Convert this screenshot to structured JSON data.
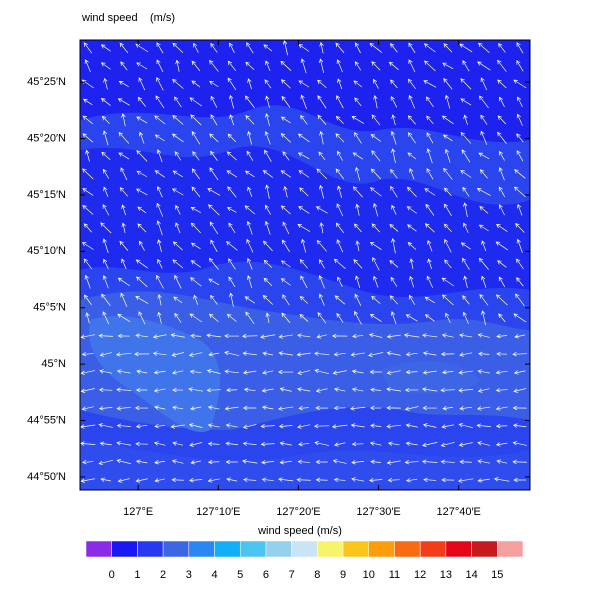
{
  "chart_data": {
    "type": "map",
    "title": "wind speed",
    "units": "(m/s)",
    "xlim": [
      126.879,
      127.815
    ],
    "ylim": [
      44.814,
      45.479
    ],
    "xticks": [
      {
        "value": 127,
        "label": "127°E"
      },
      {
        "value": 127.1667,
        "label": "127°10′E"
      },
      {
        "value": 127.3333,
        "label": "127°20′E"
      },
      {
        "value": 127.5,
        "label": "127°30′E"
      },
      {
        "value": 127.6667,
        "label": "127°40′E"
      }
    ],
    "yticks": [
      {
        "value": 44.8333,
        "label": "44°50′N"
      },
      {
        "value": 44.9167,
        "label": "44°55′N"
      },
      {
        "value": 45,
        "label": "45°N"
      },
      {
        "value": 45.0833,
        "label": "45°5′N"
      },
      {
        "value": 45.1667,
        "label": "45°10′N"
      },
      {
        "value": 45.25,
        "label": "45°15′N"
      },
      {
        "value": 45.3333,
        "label": "45°20′N"
      },
      {
        "value": 45.4167,
        "label": "45°25′N"
      }
    ],
    "colorbar": {
      "title": "wind speed  (m/s)",
      "levels": [
        0,
        1,
        2,
        3,
        4,
        5,
        6,
        7,
        8,
        9,
        10,
        11,
        12,
        13,
        14,
        15
      ],
      "colors": [
        "#8b2be8",
        "#1a17f2",
        "#2639f0",
        "#3d66e4",
        "#2986f3",
        "#11aff5",
        "#4cc4f0",
        "#96d0ef",
        "#c8e4f5",
        "#f7f36b",
        "#fcc51c",
        "#fb9e0b",
        "#f96a12",
        "#f33d1a",
        "#e5061a",
        "#c61a1f",
        "#f5a0a0"
      ]
    }
  }
}
